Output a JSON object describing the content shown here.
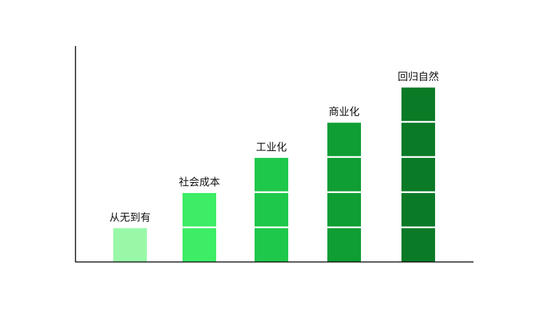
{
  "chart_data": {
    "type": "bar",
    "categories": [
      "从无到有",
      "社会成本",
      "工业化",
      "商业化",
      "回归自然"
    ],
    "values": [
      1,
      2,
      3,
      4,
      5
    ],
    "colors": [
      "#98f8a8",
      "#3ced65",
      "#1ec84a",
      "#0f9e33",
      "#0b7a27"
    ],
    "axis_color": "#111111",
    "grid": false,
    "legend": "none"
  }
}
